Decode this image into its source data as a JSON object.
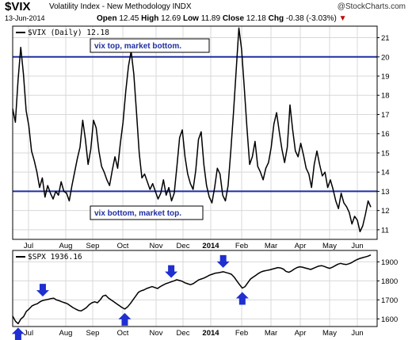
{
  "header": {
    "symbol": "$VIX",
    "description": "Volatility Index - New Methodology",
    "exchange": "INDX",
    "brand": "@StockCharts.com",
    "date": "13-Jun-2014",
    "open_label": "Open",
    "open": "12.45",
    "high_label": "High",
    "high": "12.69",
    "low_label": "Low",
    "low": "11.89",
    "close_label": "Close",
    "close": "12.18",
    "chg_label": "Chg",
    "chg": "-0.38 (-3.03%)",
    "chg_marker": "▼"
  },
  "colors": {
    "price_line": "#000000",
    "horizontal_lines": "#1f2fa0",
    "arrows": "#1f2fd0",
    "annotation_text": "#1f2fa0"
  },
  "chart_data": [
    {
      "type": "line",
      "panel_label": "$VIX (Daily) 12.18",
      "x_ticks": [
        "Jul",
        "Aug",
        "Sep",
        "Oct",
        "Nov",
        "Dec",
        "2014",
        "Feb",
        "Mar",
        "Apr",
        "May",
        "Jun"
      ],
      "y_ticks": [
        11,
        12,
        13,
        14,
        15,
        16,
        17,
        18,
        19,
        20,
        21
      ],
      "ylim": [
        10.5,
        21.6
      ],
      "horizontal_lines": [
        20,
        13
      ],
      "annotations": [
        "vix top, market bottom.",
        "vix bottom, market top."
      ],
      "grid": true,
      "series": [
        {
          "values": [
            17.3,
            16.6,
            18.8,
            20.5,
            19.1,
            17.2,
            16.4,
            15.1,
            14.6,
            14.0,
            13.2,
            13.7,
            12.7,
            13.3,
            12.9,
            12.6,
            13.0,
            12.8,
            13.5,
            13.0,
            12.9,
            12.5,
            13.3,
            14.0,
            14.7,
            15.3,
            16.7,
            15.7,
            14.4,
            15.2,
            16.7,
            16.3,
            15.1,
            14.3,
            14.0,
            13.6,
            13.3,
            14.1,
            14.8,
            14.2,
            15.5,
            16.6,
            18.2,
            19.5,
            20.3,
            19.1,
            17.1,
            15.0,
            13.7,
            13.9,
            13.5,
            13.1,
            13.4,
            13.0,
            12.6,
            12.9,
            13.6,
            12.8,
            13.2,
            12.5,
            12.9,
            14.3,
            15.8,
            16.2,
            14.8,
            13.9,
            13.4,
            13.1,
            14.1,
            15.7,
            16.1,
            14.4,
            13.3,
            12.7,
            12.4,
            13.2,
            14.2,
            13.9,
            12.8,
            12.5,
            13.3,
            15.1,
            17.1,
            19.3,
            21.5,
            20.4,
            18.4,
            16.3,
            14.4,
            14.8,
            15.6,
            14.3,
            14.0,
            13.6,
            14.2,
            14.5,
            15.3,
            16.5,
            17.1,
            16.1,
            15.2,
            14.5,
            15.3,
            17.5,
            16.2,
            15.1,
            14.8,
            15.5,
            14.9,
            14.2,
            13.9,
            13.2,
            14.4,
            15.1,
            14.4,
            13.8,
            14.0,
            13.2,
            13.6,
            13.1,
            12.5,
            12.1,
            12.9,
            12.4,
            12.2,
            11.9,
            11.3,
            11.7,
            11.5,
            10.9,
            11.2,
            11.8,
            12.5,
            12.18
          ]
        }
      ]
    },
    {
      "type": "line",
      "panel_label": "$SPX 1936.16",
      "x_ticks": [
        "Jul",
        "Aug",
        "Sep",
        "Oct",
        "Nov",
        "Dec",
        "2014",
        "Feb",
        "Mar",
        "Apr",
        "May",
        "Jun"
      ],
      "y_ticks": [
        1600,
        1700,
        1800,
        1900
      ],
      "ylim": [
        1560,
        1960
      ],
      "grid": true,
      "series": [
        {
          "values": [
            1615,
            1588,
            1575,
            1600,
            1612,
            1640,
            1652,
            1668,
            1675,
            1680,
            1690,
            1697,
            1700,
            1703,
            1707,
            1709,
            1700,
            1696,
            1690,
            1685,
            1680,
            1670,
            1660,
            1652,
            1645,
            1642,
            1650,
            1660,
            1675,
            1685,
            1690,
            1685,
            1700,
            1720,
            1725,
            1710,
            1700,
            1690,
            1680,
            1670,
            1660,
            1652,
            1663,
            1680,
            1700,
            1720,
            1740,
            1748,
            1752,
            1760,
            1765,
            1770,
            1765,
            1760,
            1770,
            1778,
            1785,
            1790,
            1795,
            1800,
            1806,
            1802,
            1798,
            1790,
            1785,
            1780,
            1785,
            1795,
            1805,
            1810,
            1815,
            1822,
            1830,
            1835,
            1840,
            1842,
            1845,
            1848,
            1844,
            1840,
            1835,
            1820,
            1800,
            1780,
            1762,
            1770,
            1790,
            1810,
            1820,
            1830,
            1840,
            1848,
            1852,
            1855,
            1858,
            1862,
            1866,
            1870,
            1868,
            1862,
            1850,
            1845,
            1852,
            1862,
            1870,
            1874,
            1872,
            1868,
            1864,
            1860,
            1866,
            1872,
            1878,
            1880,
            1876,
            1870,
            1866,
            1872,
            1880,
            1888,
            1892,
            1888,
            1886,
            1890,
            1896,
            1905,
            1912,
            1918,
            1922,
            1926,
            1930,
            1936.16
          ]
        }
      ],
      "arrows": [
        {
          "direction": "up",
          "index": 2
        },
        {
          "direction": "down",
          "index": 11
        },
        {
          "direction": "up",
          "index": 41
        },
        {
          "direction": "down",
          "index": 58
        },
        {
          "direction": "down",
          "index": 77
        },
        {
          "direction": "up",
          "index": 84
        }
      ]
    }
  ]
}
